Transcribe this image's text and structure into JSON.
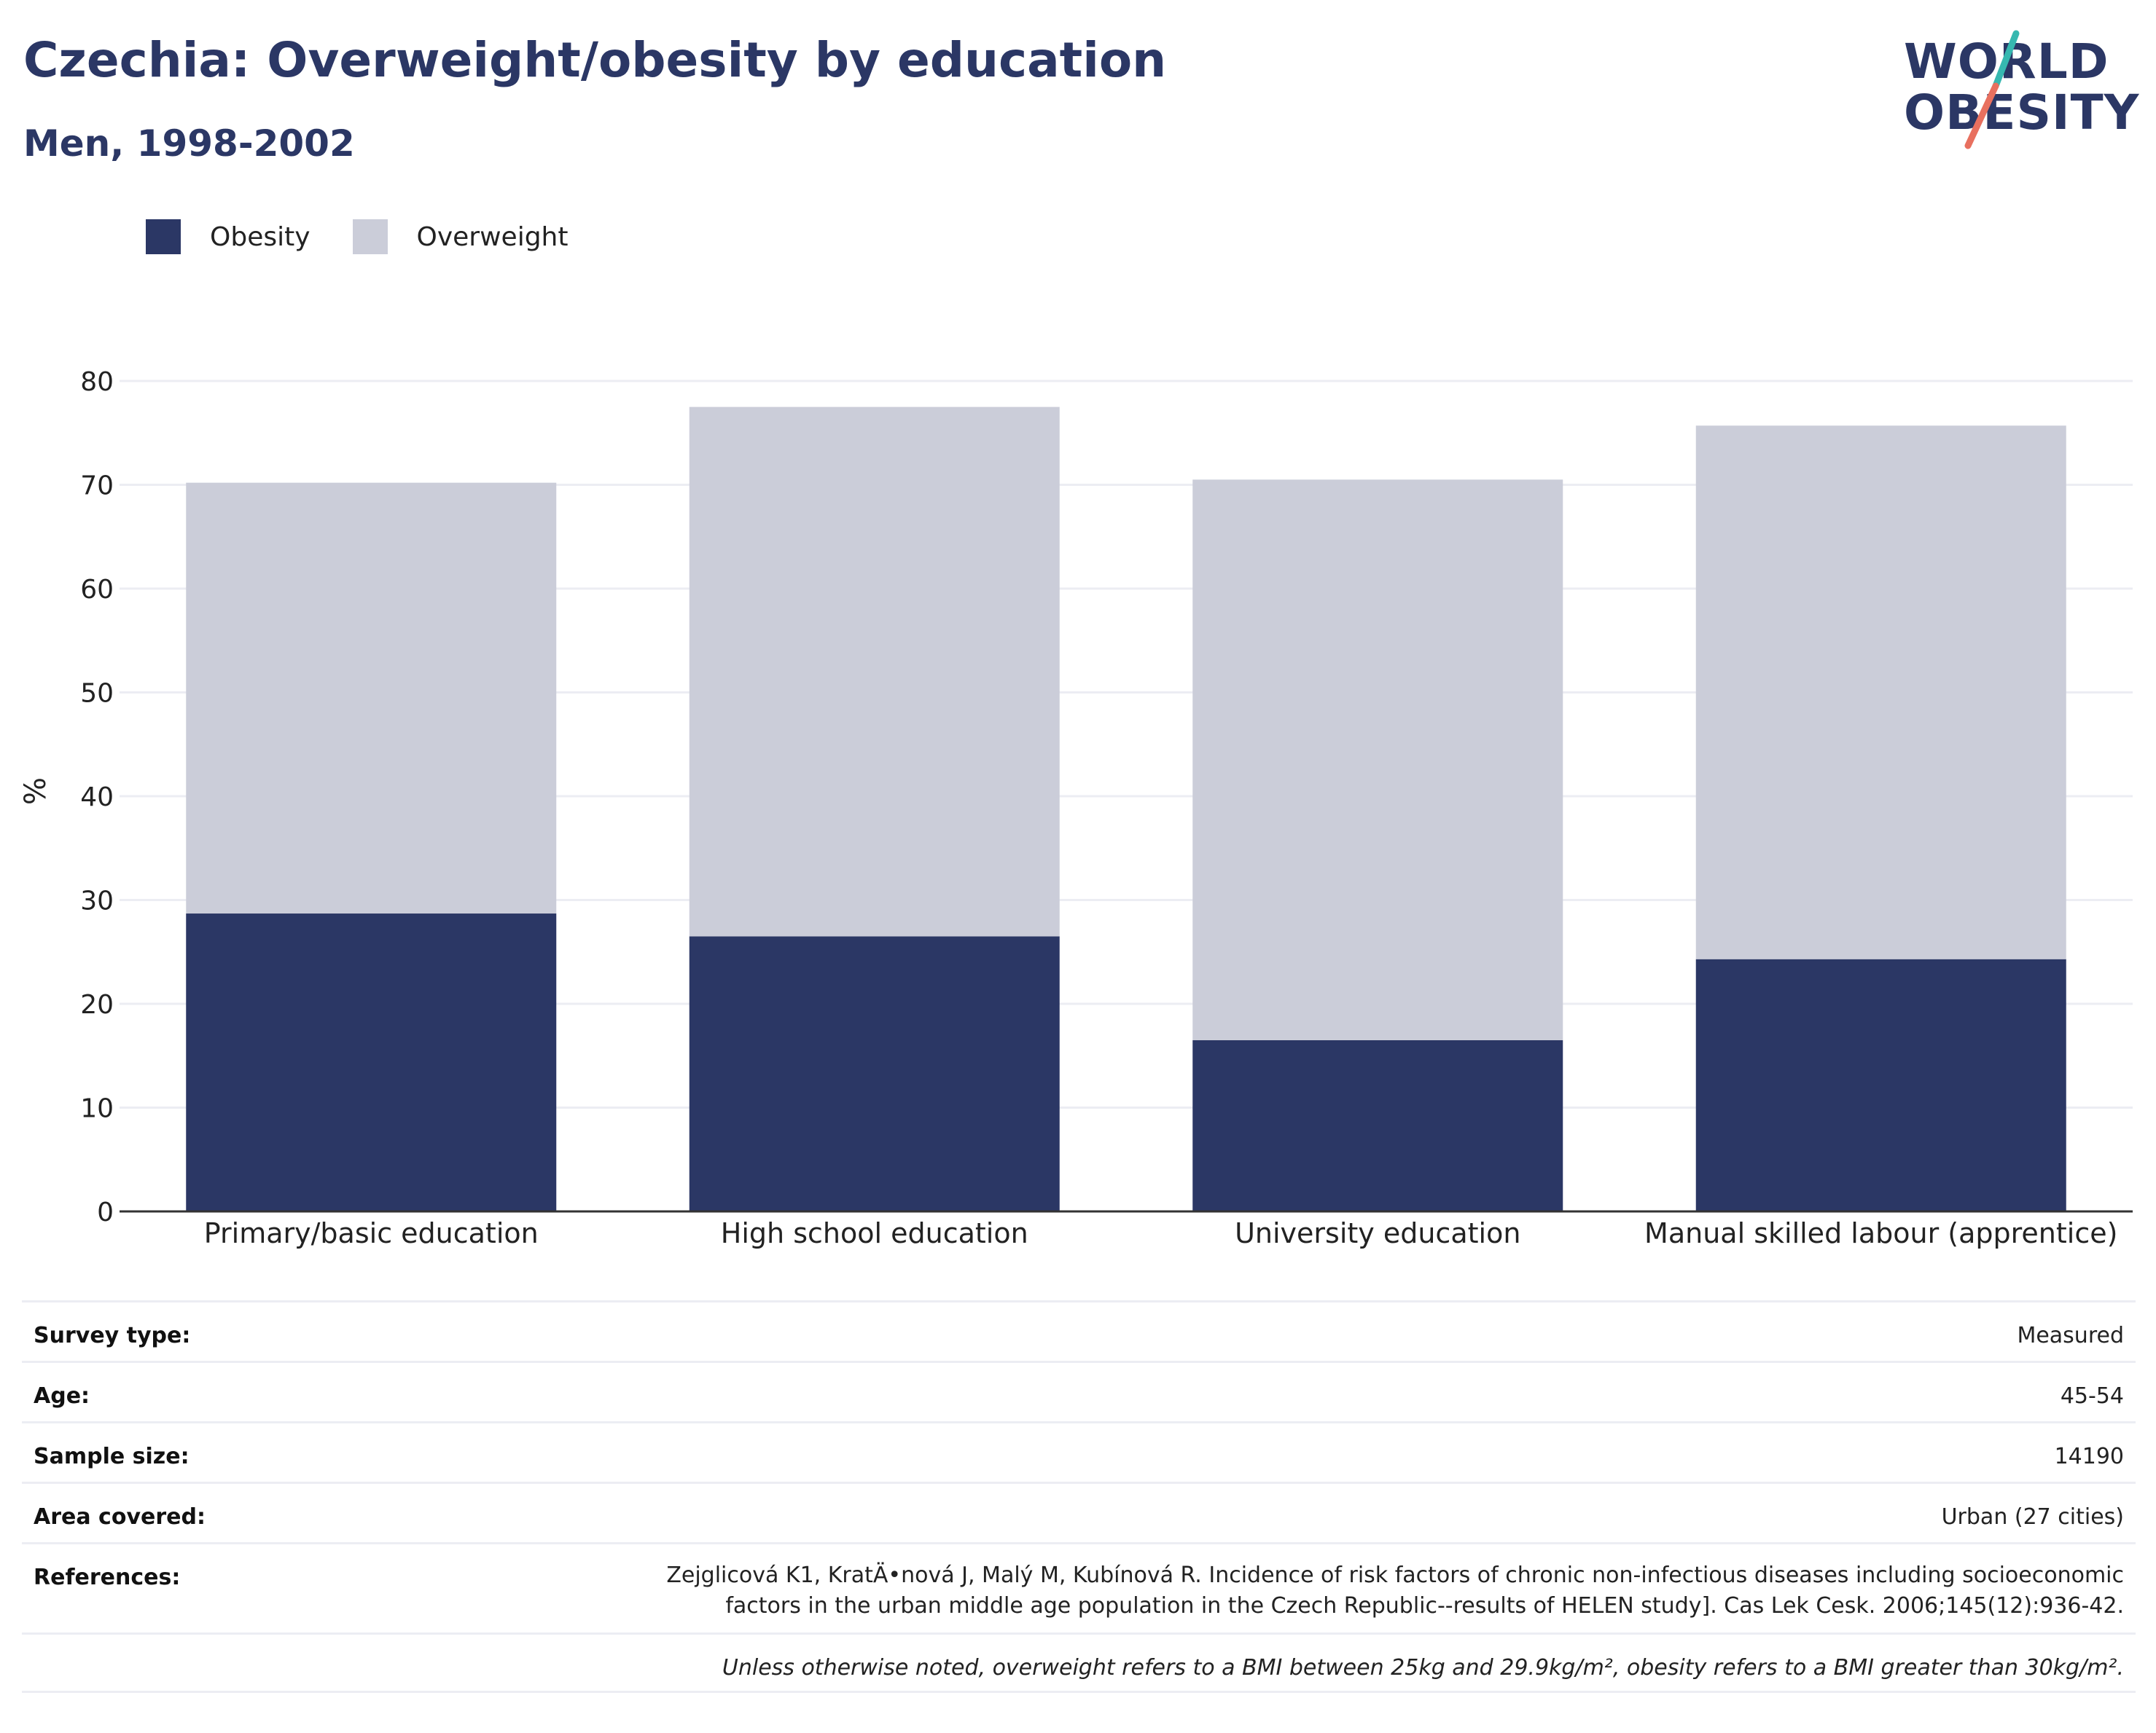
{
  "header": {
    "title": "Czechia: Overweight/obesity by education",
    "subtitle": "Men, 1998-2002"
  },
  "logo": {
    "line1": "WORLD",
    "line2": "OBESITY",
    "colors": {
      "text": "#2b3765",
      "slash_top": "#36b8b0",
      "slash_bottom": "#e8705f"
    }
  },
  "colors": {
    "obesity": "#2b3765",
    "overweight": "#cbcdd9",
    "grid": "#ecedf3",
    "axis": "#333333"
  },
  "chart_data": {
    "type": "bar",
    "stacked": true,
    "categories": [
      "Primary/basic education",
      "High school education",
      "University education",
      "Manual skilled labour (apprentice)"
    ],
    "series": [
      {
        "name": "Obesity",
        "values": [
          28.7,
          26.5,
          16.5,
          24.3
        ]
      },
      {
        "name": "Overweight",
        "values": [
          41.5,
          51.0,
          54.0,
          51.4
        ]
      }
    ],
    "ylabel": "%",
    "ylim": [
      0,
      80
    ],
    "yticks": [
      0,
      10,
      20,
      30,
      40,
      50,
      60,
      70,
      80
    ],
    "grid": true,
    "legend_position": "top-left"
  },
  "info": {
    "survey_type": {
      "label": "Survey type:",
      "value": "Measured"
    },
    "age": {
      "label": "Age:",
      "value": "45-54"
    },
    "sample_size": {
      "label": "Sample size:",
      "value": "14190"
    },
    "area_covered": {
      "label": "Area covered:",
      "value": "Urban (27 cities)"
    },
    "references": {
      "label": "References:",
      "value": "Zejglicová K1, KratÄ•nová J, Malý M, Kubínová R.  Incidence of risk factors of chronic non-infectious diseases including socioeconomic factors in the urban middle age population in the Czech Republic--results of HELEN study]. Cas Lek Cesk. 2006;145(12):936-42."
    },
    "note": "Unless otherwise noted, overweight refers to a BMI between 25kg and 29.9kg/m², obesity refers to a BMI greater than 30kg/m²."
  }
}
